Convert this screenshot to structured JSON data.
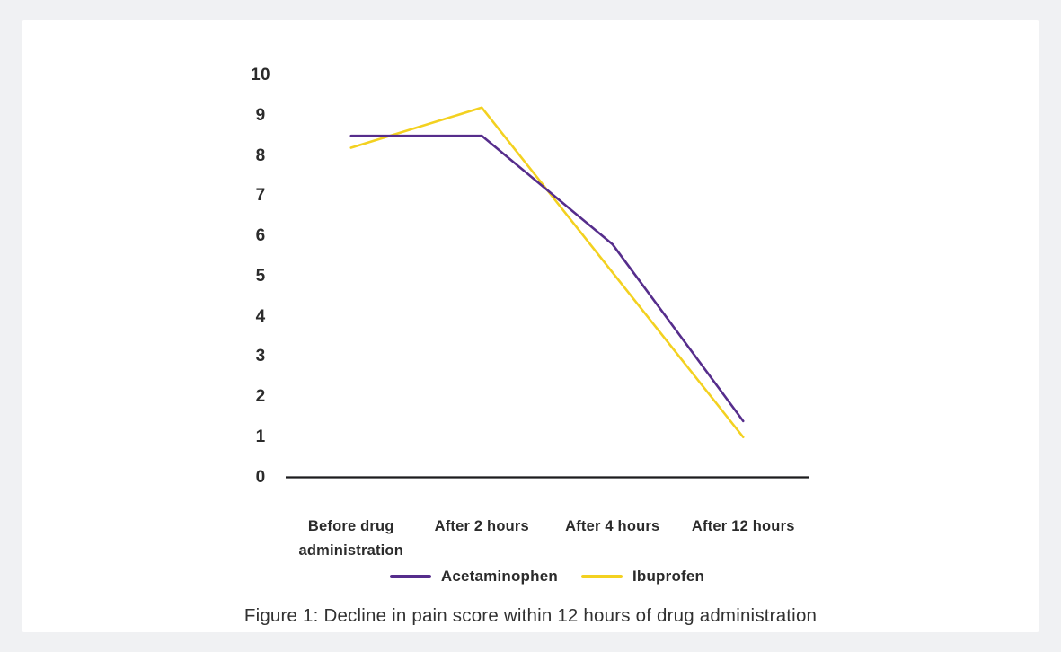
{
  "page": {
    "background_color": "#f0f1f3",
    "card_color": "#ffffff"
  },
  "chart_data": {
    "type": "line",
    "categories": [
      "Before drug administration",
      "After 2 hours",
      "After 4 hours",
      "After 12 hours"
    ],
    "series": [
      {
        "name": "Acetaminophen",
        "color": "#562d8c",
        "values": [
          8.5,
          8.5,
          5.8,
          1.4
        ]
      },
      {
        "name": "Ibuprofen",
        "color": "#f3d120",
        "values": [
          8.2,
          9.2,
          5.1,
          1.0
        ]
      }
    ],
    "yticks": [
      10,
      9,
      8,
      7,
      6,
      5,
      4,
      3,
      2,
      1,
      0
    ],
    "ylim": [
      0,
      10
    ],
    "xlabel": "",
    "ylabel": "",
    "grid": false,
    "legend_position": "bottom",
    "axis_color": "#1c1c1e",
    "text_color": "#2b2b2b"
  },
  "caption": "Figure 1: Decline in pain score within 12 hours of drug administration"
}
